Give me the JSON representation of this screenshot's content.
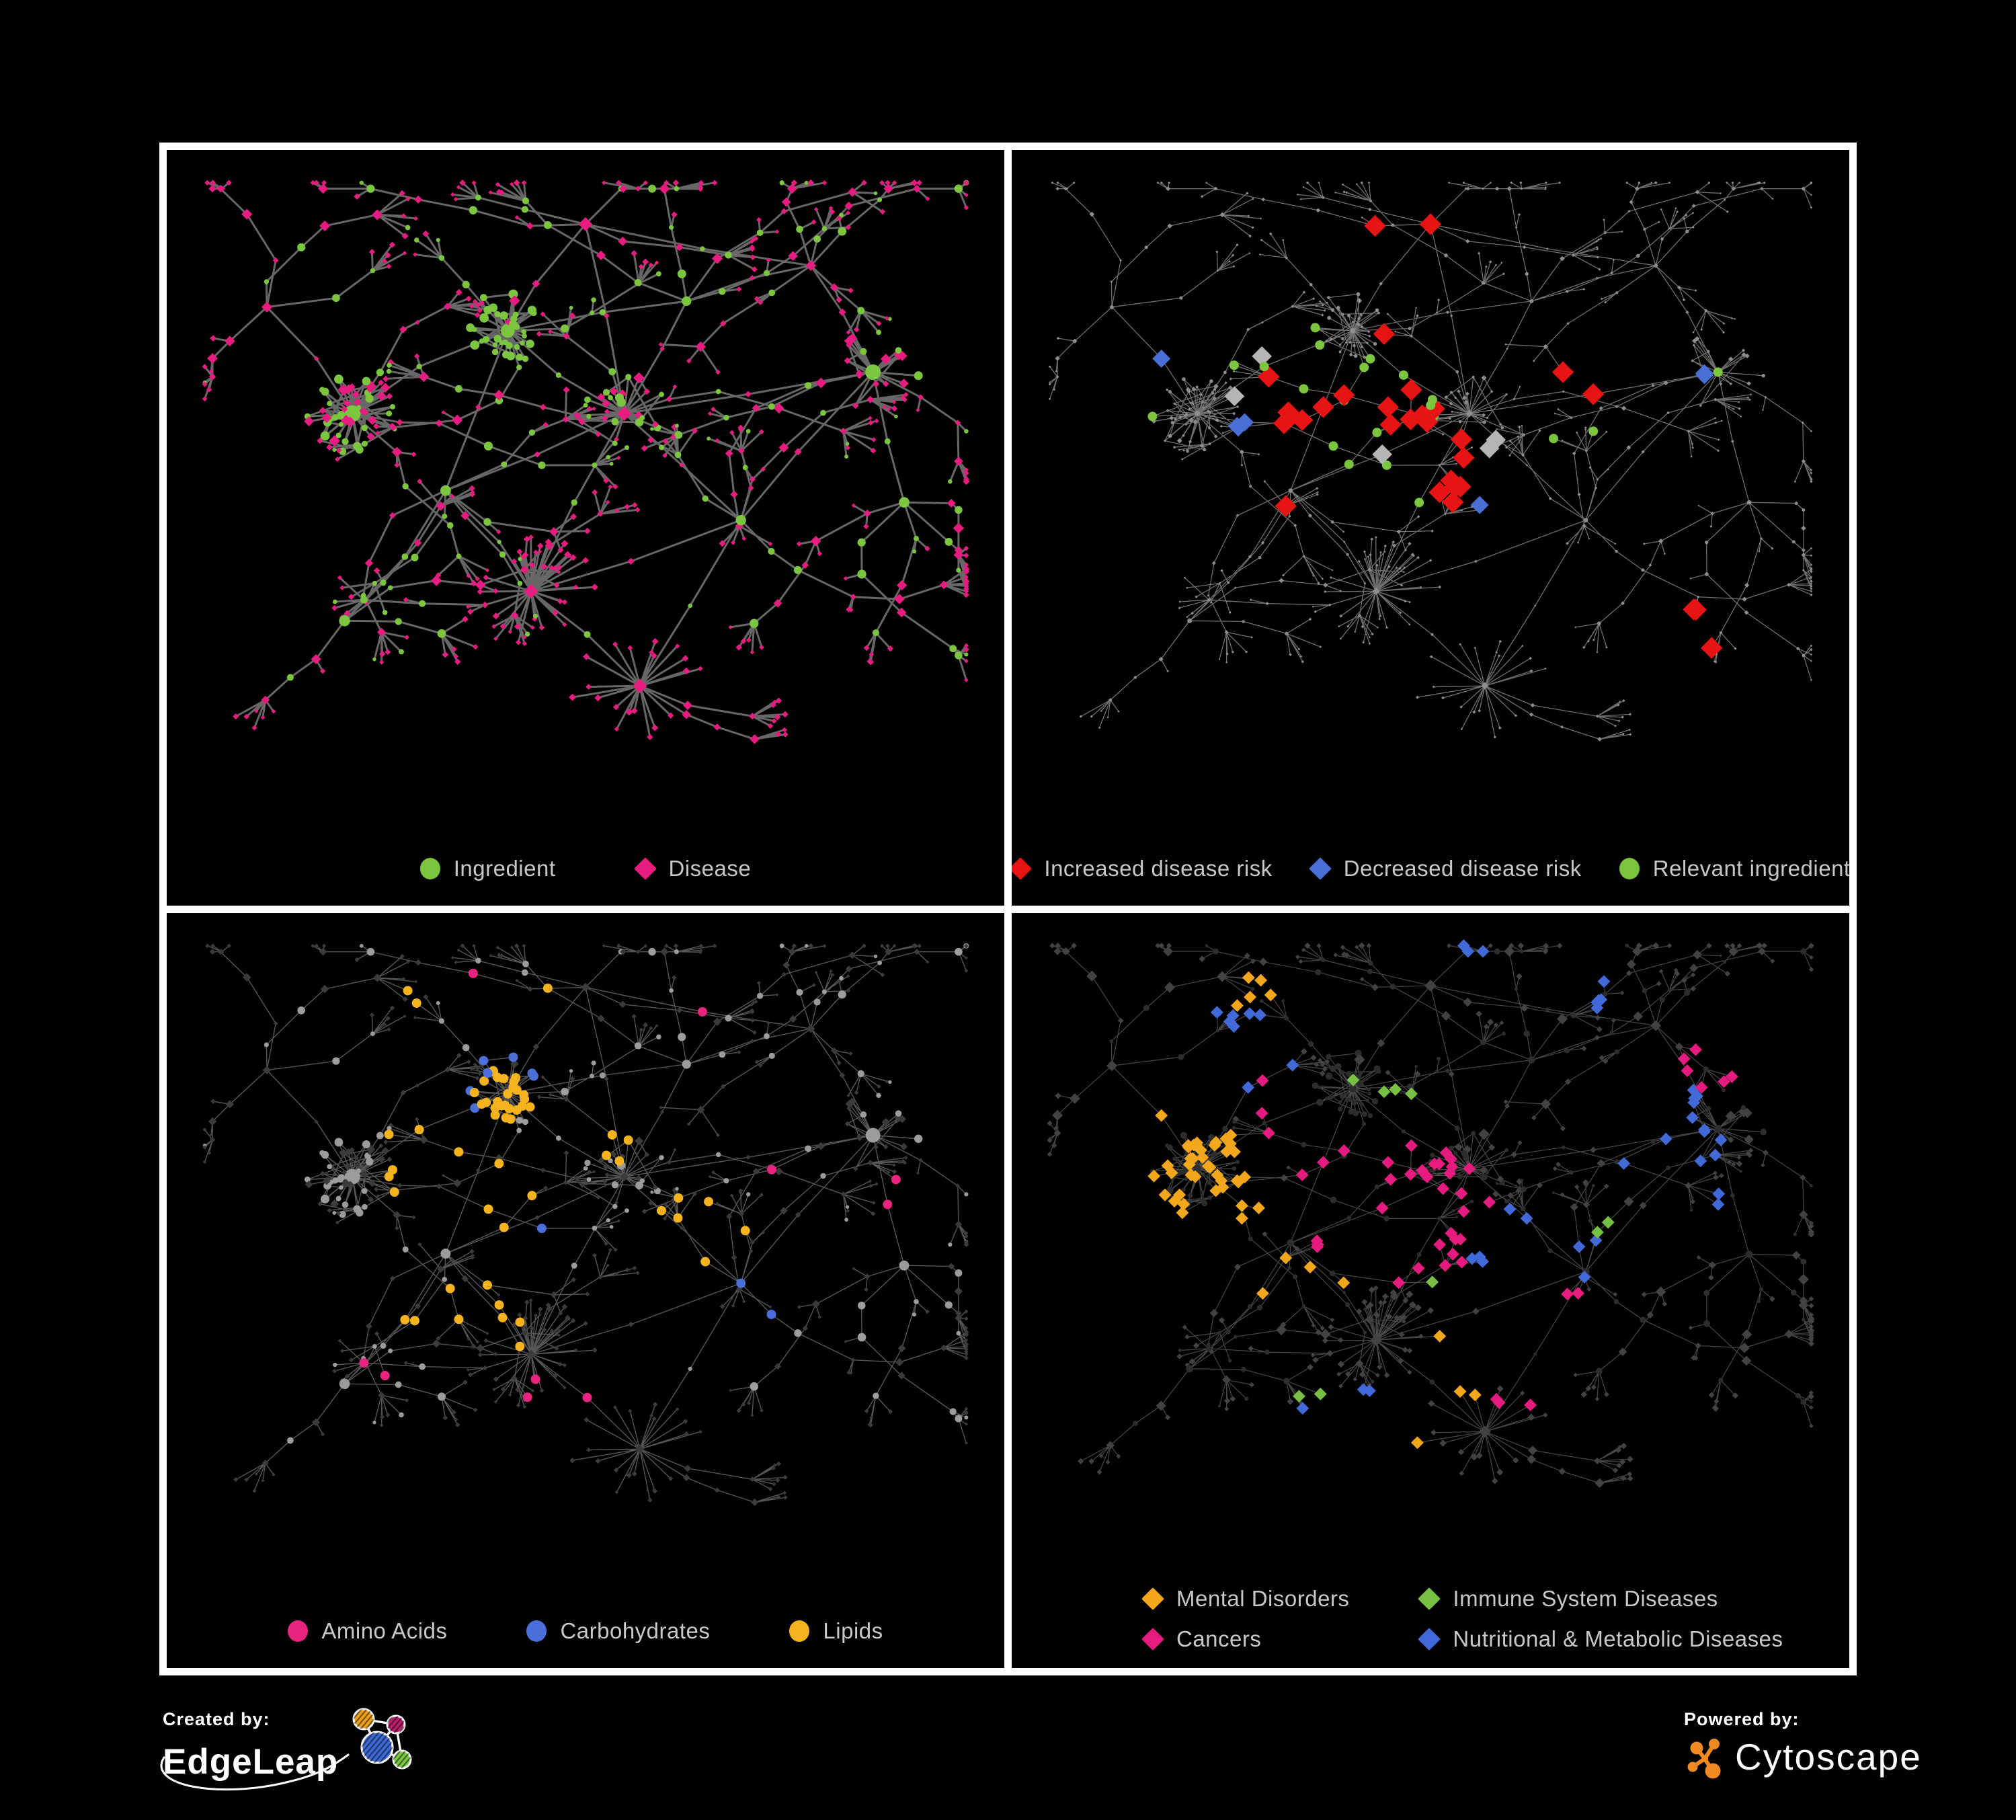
{
  "frame": {
    "border_color": "#ffffff",
    "background": "#000000"
  },
  "legend_text_color": "#c8c8c8",
  "network_layout": {
    "seed": 97,
    "hubs": [
      [
        0.2,
        0.4,
        "dense",
        0.5,
        52
      ],
      [
        0.4,
        0.26,
        "dense",
        0.85,
        36
      ],
      [
        0.32,
        0.53,
        "tree",
        0.5,
        0
      ],
      [
        0.55,
        0.4,
        "dense",
        0.45,
        22
      ],
      [
        0.43,
        0.7,
        "star",
        0.2,
        34
      ],
      [
        0.63,
        0.21,
        "tree",
        0.45,
        0
      ],
      [
        0.79,
        0.15,
        "tree",
        0.4,
        0
      ],
      [
        0.87,
        0.33,
        "dense",
        0.4,
        16
      ],
      [
        0.7,
        0.58,
        "tree",
        0.5,
        0
      ],
      [
        0.19,
        0.75,
        "tree",
        0.45,
        0
      ],
      [
        0.57,
        0.86,
        "star",
        0.2,
        20
      ],
      [
        0.09,
        0.22,
        "tree",
        0.5,
        0
      ],
      [
        0.91,
        0.55,
        "tree",
        0.4,
        0
      ],
      [
        0.5,
        0.08,
        "tree",
        0.5,
        0
      ]
    ]
  },
  "panels": [
    {
      "id": "ingredient-disease",
      "legend": {
        "items": [
          {
            "label": "Ingredient",
            "shape": "circle",
            "color": "#7cc63f"
          },
          {
            "label": "Disease",
            "shape": "diamond",
            "color": "#e61c80"
          }
        ]
      },
      "network": {
        "area": [
          45,
          40,
          1156,
          880
        ],
        "edge": {
          "color": "#6d6d6d",
          "width": 3,
          "opacity": 0.95
        },
        "circle": {
          "color": "#7cc63f",
          "scale": 1.0,
          "max": 15
        },
        "diamond": {
          "color": "#e61c80",
          "scale": 0.9,
          "max": 8
        },
        "paint": []
      }
    },
    {
      "id": "disease-risk",
      "legend": {
        "items": [
          {
            "label": "Increased disease risk",
            "shape": "diamond",
            "color": "#e81313"
          },
          {
            "label": "Decreased disease risk",
            "shape": "diamond",
            "color": "#4a6fd4"
          },
          {
            "label": "Relevant ingredient",
            "shape": "circle",
            "color": "#7cc63f"
          }
        ]
      },
      "network": {
        "area": [
          45,
          40,
          1156,
          880
        ],
        "edge": {
          "color": "#8a8a8a",
          "width": 1.3,
          "opacity": 0.8
        },
        "circle": {
          "color": "#8d8d8d",
          "scale": 0.42,
          "max": 4
        },
        "diamond": {
          "color": "#8d8d8d",
          "scale": 0.42,
          "max": 4
        },
        "paint": [
          {
            "shape": "diamond",
            "color": "#e81313",
            "size": 12,
            "spots": [
              [
                0.4,
                0.36,
                0.2,
                15
              ],
              [
                0.53,
                0.5,
                0.15,
                7
              ],
              [
                0.8,
                0.77,
                0.11,
                3
              ],
              [
                0.46,
                0.12,
                0.1,
                2
              ],
              [
                0.72,
                0.32,
                0.08,
                2
              ],
              [
                0.31,
                0.56,
                0.07,
                1
              ]
            ]
          },
          {
            "shape": "diamond",
            "color": "#4a6fd4",
            "size": 10,
            "spots": [
              [
                0.285,
                0.43,
                0.075,
                3
              ],
              [
                0.84,
                0.33,
                0.06,
                2
              ],
              [
                0.6,
                0.53,
                0.05,
                1
              ],
              [
                0.16,
                0.3,
                0.05,
                1
              ]
            ]
          },
          {
            "shape": "diamond",
            "color": "#b5b5b5",
            "size": 11,
            "spots": [
              [
                0.33,
                0.36,
                0.09,
                2
              ],
              [
                0.56,
                0.44,
                0.08,
                2
              ],
              [
                0.63,
                0.7,
                0.06,
                1
              ],
              [
                0.44,
                0.48,
                0.05,
                1
              ]
            ]
          },
          {
            "shape": "circle",
            "color": "#7cc63f",
            "size": 7,
            "spots": [
              [
                0.42,
                0.4,
                0.22,
                12
              ],
              [
                0.3,
                0.29,
                0.1,
                4
              ],
              [
                0.56,
                0.6,
                0.1,
                3
              ],
              [
                0.13,
                0.38,
                0.07,
                1
              ],
              [
                0.83,
                0.34,
                0.06,
                1
              ],
              [
                0.68,
                0.45,
                0.07,
                2
              ]
            ]
          }
        ]
      }
    },
    {
      "id": "ingredient-classes",
      "legend": {
        "items": [
          {
            "label": "Amino Acids",
            "shape": "circle",
            "color": "#e8247f"
          },
          {
            "label": "Carbohydrates",
            "shape": "circle",
            "color": "#4a6fd8"
          },
          {
            "label": "Lipids",
            "shape": "circle",
            "color": "#f6b31d"
          }
        ]
      },
      "network": {
        "area": [
          45,
          40,
          1156,
          880
        ],
        "edge": {
          "color": "#ababab",
          "width": 1.4,
          "opacity": 0.5
        },
        "circle": {
          "color": "#9c9c9c",
          "scale": 0.95,
          "max": 12
        },
        "diamond": {
          "color": "#3b3b3b",
          "scale": 0.7,
          "max": 5
        },
        "paint": [
          {
            "shape": "circle",
            "color": "#f6b31d",
            "size": 7,
            "spots": [
              [
                0.4,
                0.26,
                0.12,
                26
              ],
              [
                0.33,
                0.4,
                0.11,
                10
              ],
              [
                0.43,
                0.61,
                0.08,
                6
              ],
              [
                0.63,
                0.52,
                0.18,
                6
              ],
              [
                0.29,
                0.62,
                0.12,
                4
              ],
              [
                0.55,
                0.33,
                0.09,
                4
              ],
              [
                0.25,
                0.1,
                0.07,
                2
              ],
              [
                0.48,
                0.08,
                0.06,
                2
              ],
              [
                0.57,
                0.86,
                0.06,
                3
              ]
            ]
          },
          {
            "shape": "circle",
            "color": "#4a6fd8",
            "size": 7,
            "spots": [
              [
                0.385,
                0.24,
                0.1,
                8
              ],
              [
                0.73,
                0.6,
                0.09,
                2
              ],
              [
                0.12,
                0.3,
                0.06,
                1
              ],
              [
                0.44,
                0.46,
                0.06,
                2
              ],
              [
                0.05,
                0.42,
                0.05,
                1
              ]
            ]
          },
          {
            "shape": "circle",
            "color": "#e8247f",
            "size": 7,
            "spots": [
              [
                0.24,
                0.72,
                0.1,
                2
              ],
              [
                0.5,
                0.78,
                0.11,
                3
              ],
              [
                0.05,
                0.5,
                0.09,
                2
              ],
              [
                0.57,
                0.3,
                0.07,
                2
              ],
              [
                0.88,
                0.42,
                0.08,
                2
              ],
              [
                0.13,
                0.27,
                0.06,
                1
              ],
              [
                0.62,
                0.12,
                0.06,
                1
              ],
              [
                0.35,
                0.05,
                0.06,
                1
              ],
              [
                0.75,
                0.4,
                0.06,
                1
              ]
            ]
          }
        ]
      }
    },
    {
      "id": "disease-classes",
      "legend": {
        "items": [
          {
            "label": "Mental Disorders",
            "shape": "diamond",
            "color": "#f2a71c"
          },
          {
            "label": "Immune System Diseases",
            "shape": "diamond",
            "color": "#77c043"
          },
          {
            "label": "Cancers",
            "shape": "diamond",
            "color": "#e61b80"
          },
          {
            "label": "Nutritional & Metabolic Diseases",
            "shape": "diamond",
            "color": "#4169d8"
          }
        ]
      },
      "network": {
        "area": [
          45,
          40,
          1156,
          850
        ],
        "edge": {
          "color": "#9e9e9e",
          "width": 1.2,
          "opacity": 0.45
        },
        "circle": {
          "color": "#2d2d2d",
          "scale": 0.75,
          "max": 5.5
        },
        "diamond": {
          "color": "#424242",
          "scale": 0.9,
          "max": 6.5
        },
        "paint": [
          {
            "shape": "diamond",
            "color": "#f2a71c",
            "size": 7,
            "spots": [
              [
                0.16,
                0.43,
                0.14,
                60
              ],
              [
                0.28,
                0.09,
                0.1,
                5
              ],
              [
                0.34,
                0.6,
                0.08,
                4
              ],
              [
                0.55,
                0.73,
                0.07,
                3
              ],
              [
                0.45,
                0.9,
                0.05,
                2
              ],
              [
                0.08,
                0.75,
                0.06,
                2
              ]
            ]
          },
          {
            "shape": "diamond",
            "color": "#e61b80",
            "size": 7,
            "spots": [
              [
                0.45,
                0.47,
                0.13,
                35
              ],
              [
                0.85,
                0.22,
                0.08,
                6
              ],
              [
                0.6,
                0.82,
                0.06,
                3
              ],
              [
                0.32,
                0.3,
                0.07,
                3
              ],
              [
                0.7,
                0.65,
                0.06,
                2
              ]
            ]
          },
          {
            "shape": "diamond",
            "color": "#4169d8",
            "size": 7,
            "spots": [
              [
                0.62,
                0.55,
                0.1,
                20
              ],
              [
                0.8,
                0.33,
                0.12,
                12
              ],
              [
                0.24,
                0.18,
                0.14,
                8
              ],
              [
                0.7,
                0.08,
                0.1,
                5
              ],
              [
                0.4,
                0.86,
                0.09,
                3
              ],
              [
                0.1,
                0.6,
                0.07,
                3
              ],
              [
                0.9,
                0.5,
                0.07,
                3
              ],
              [
                0.55,
                0.05,
                0.07,
                3
              ]
            ]
          },
          {
            "shape": "diamond",
            "color": "#77c043",
            "size": 7,
            "spots": [
              [
                0.44,
                0.3,
                0.14,
                4
              ],
              [
                0.7,
                0.5,
                0.06,
                2
              ],
              [
                0.35,
                0.78,
                0.06,
                2
              ],
              [
                0.18,
                0.3,
                0.06,
                2
              ],
              [
                0.52,
                0.6,
                0.05,
                1
              ]
            ]
          }
        ]
      }
    }
  ],
  "footer": {
    "created_by": {
      "label": "Created by:",
      "brand": "EdgeLeap"
    },
    "powered_by": {
      "label": "Powered by:",
      "brand": "Cytoscape"
    },
    "edgeleap_colors": {
      "orange": "#f0a11c",
      "magenta": "#bb1f6e",
      "blue": "#3d6bd7",
      "green": "#7ac943"
    },
    "cytoscape_orange": "#ef8b22"
  }
}
